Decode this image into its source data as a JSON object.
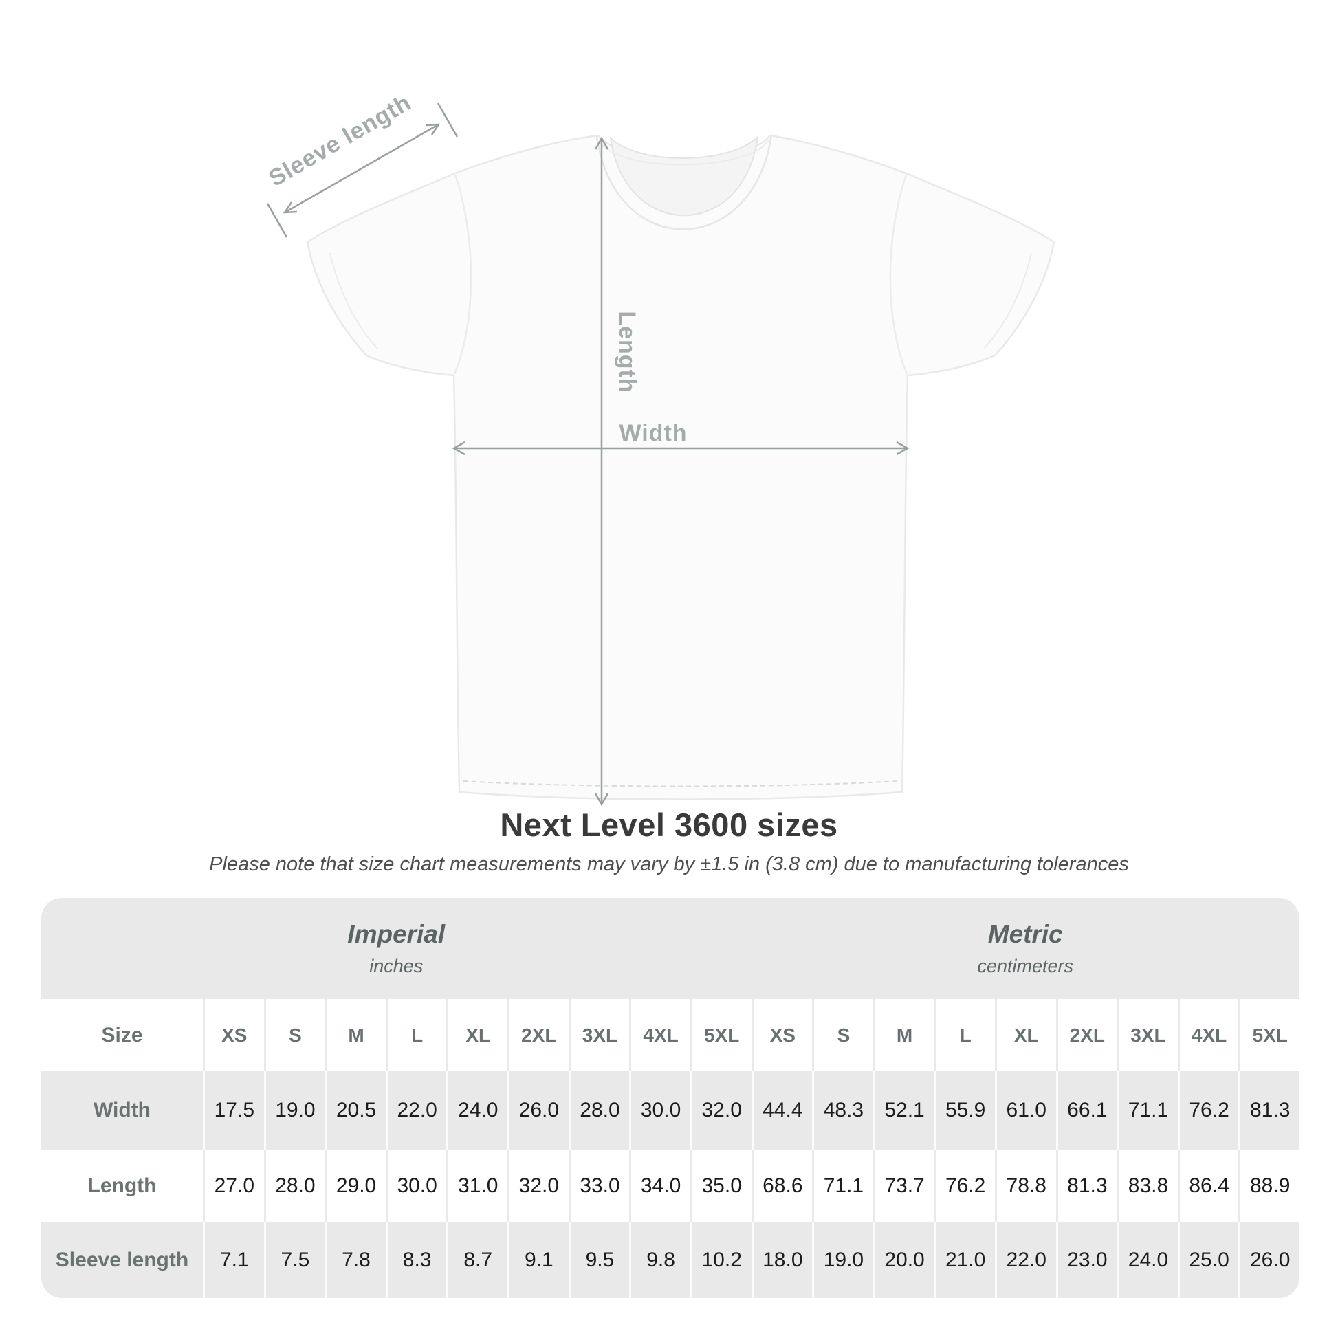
{
  "title": "Next Level 3600 sizes",
  "subtitle": "Please note that size chart measurements may vary by ±1.5 in (3.8 cm) due to manufacturing tolerances",
  "diagram": {
    "sleeve_length_label": "Sleeve length",
    "length_label": "Length",
    "width_label": "Width"
  },
  "table": {
    "size_header_label": "Size",
    "sizes": [
      "XS",
      "S",
      "M",
      "L",
      "XL",
      "2XL",
      "3XL",
      "4XL",
      "5XL"
    ],
    "unit_groups": [
      {
        "name": "Imperial",
        "unit": "inches"
      },
      {
        "name": "Metric",
        "unit": "centimeters"
      }
    ],
    "rows": [
      {
        "label": "Width",
        "imperial": [
          "17.5",
          "19.0",
          "20.5",
          "22.0",
          "24.0",
          "26.0",
          "28.0",
          "30.0",
          "32.0"
        ],
        "metric": [
          "44.4",
          "48.3",
          "52.1",
          "55.9",
          "61.0",
          "66.1",
          "71.1",
          "76.2",
          "81.3"
        ]
      },
      {
        "label": "Length",
        "imperial": [
          "27.0",
          "28.0",
          "29.0",
          "30.0",
          "31.0",
          "32.0",
          "33.0",
          "34.0",
          "35.0"
        ],
        "metric": [
          "68.6",
          "71.1",
          "73.7",
          "76.2",
          "78.8",
          "81.3",
          "83.8",
          "86.4",
          "88.9"
        ]
      },
      {
        "label": "Sleeve length",
        "imperial": [
          "7.1",
          "7.5",
          "7.8",
          "8.3",
          "8.7",
          "9.1",
          "9.5",
          "9.8",
          "10.2"
        ],
        "metric": [
          "18.0",
          "19.0",
          "20.0",
          "21.0",
          "22.0",
          "23.0",
          "24.0",
          "25.0",
          "26.0"
        ]
      }
    ]
  },
  "colors": {
    "band_gray": "#e9e9e9",
    "data_text": "#1c1c1c",
    "row_label_text": "#6b7272",
    "size_header_text": "#697071",
    "unit_header_text": "#5b6365",
    "title_text": "#3a3a3a",
    "subtitle_text": "#4e4e4e",
    "diagram_line": "#9aa0a2",
    "diagram_label": "#a5aaab",
    "shirt_fill": "#fbfbfb",
    "shirt_outline": "#e9e9e9"
  }
}
